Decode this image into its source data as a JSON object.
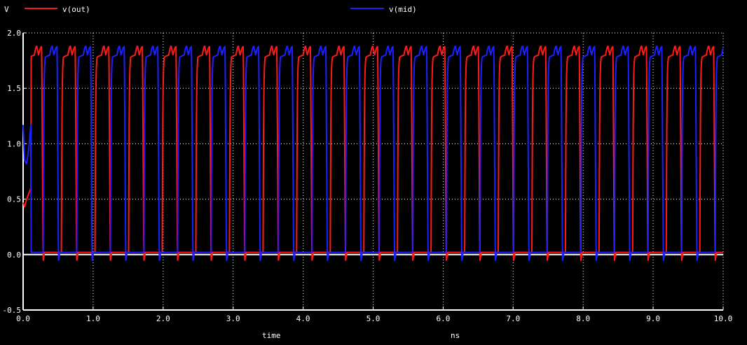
{
  "chart_data": {
    "type": "line",
    "ylabel": "V",
    "xlabel": "time",
    "xunit": "ns",
    "xlim": [
      0.0,
      10.0
    ],
    "ylim": [
      -0.5,
      2.0
    ],
    "xticks": [
      "0.0",
      "1.0",
      "2.0",
      "3.0",
      "4.0",
      "5.0",
      "6.0",
      "7.0",
      "8.0",
      "9.0",
      "10.0"
    ],
    "yticks": [
      "-0.5",
      "0.0",
      "0.5",
      "1.0",
      "1.5",
      "2.0"
    ],
    "grid": true,
    "legend_position": "top",
    "waveform": {
      "period_ns": 0.48,
      "low_v": 0.0,
      "high_v": 1.8,
      "peak_v": 1.88,
      "undershoot_v": -0.06
    },
    "series": [
      {
        "name": "v(out)",
        "color": "#ff1a1a",
        "phase_ns": 0.06,
        "initial": [
          [
            0.0,
            0.47
          ],
          [
            0.02,
            0.43
          ],
          [
            0.05,
            0.5
          ],
          [
            0.08,
            0.55
          ],
          [
            0.11,
            0.6
          ]
        ]
      },
      {
        "name": "v(mid)",
        "color": "#1f1fff",
        "phase_ns": 0.28,
        "initial": [
          [
            0.0,
            1.17
          ],
          [
            0.02,
            0.85
          ],
          [
            0.05,
            0.82
          ],
          [
            0.08,
            0.95
          ],
          [
            0.11,
            1.17
          ]
        ]
      }
    ]
  }
}
